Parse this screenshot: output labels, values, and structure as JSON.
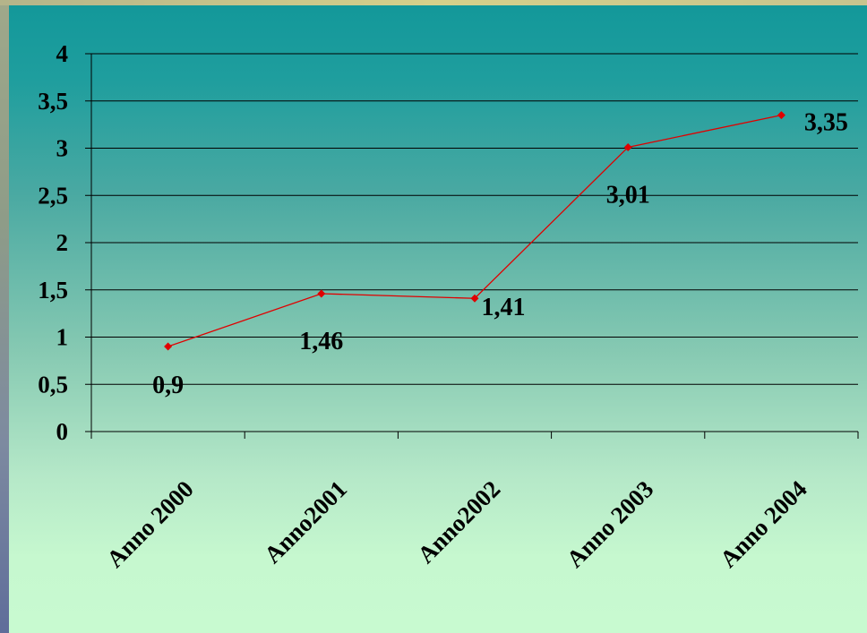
{
  "chart_data": {
    "type": "line",
    "title": "",
    "xlabel": "",
    "ylabel": "",
    "categories": [
      "Anno 2000",
      "Anno2001",
      "Anno2002",
      "Anno 2003",
      "Anno 2004"
    ],
    "series": [
      {
        "values": [
          0.9,
          1.46,
          1.41,
          3.01,
          3.35
        ],
        "color": "#e00000"
      }
    ],
    "data_labels": [
      "0,9",
      "1,46",
      "1,41",
      "3,01",
      "3,35"
    ],
    "ylim": [
      0,
      4
    ],
    "yticks": [
      0,
      0.5,
      1,
      1.5,
      2,
      2.5,
      3,
      3.5,
      4
    ],
    "ytick_labels": [
      "0",
      "0,5",
      "1",
      "1,5",
      "2",
      "2,5",
      "3",
      "3,5",
      "4"
    ],
    "grid": true,
    "legend": "none",
    "colors": {
      "line": "#e00000",
      "axis": "#000000"
    }
  }
}
